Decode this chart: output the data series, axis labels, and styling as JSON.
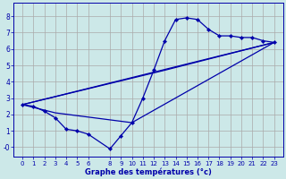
{
  "title": "Graphe des températures (°c)",
  "bg_color": "#cce8e8",
  "grid_color": "#aaaaaa",
  "line_color": "#0000aa",
  "x_ticks": [
    0,
    1,
    2,
    3,
    4,
    5,
    6,
    8,
    9,
    10,
    11,
    12,
    13,
    14,
    15,
    16,
    17,
    18,
    19,
    20,
    21,
    22,
    23
  ],
  "y_ticks": [
    0,
    1,
    2,
    3,
    4,
    5,
    6,
    7,
    8
  ],
  "ylim": [
    -0.6,
    8.8
  ],
  "xlim": [
    -0.8,
    23.8
  ],
  "line1_x": [
    0,
    1,
    2,
    3,
    4,
    5,
    6,
    8,
    9,
    10,
    11,
    12,
    13,
    14,
    15,
    16,
    17,
    18,
    19,
    20,
    21,
    22,
    23
  ],
  "line1_y": [
    2.6,
    2.5,
    2.2,
    1.8,
    1.1,
    1.0,
    0.8,
    -0.1,
    0.7,
    1.5,
    3.0,
    4.7,
    6.5,
    7.8,
    7.9,
    7.8,
    7.2,
    6.8,
    6.8,
    6.7,
    6.7,
    6.5,
    6.4
  ],
  "line2_x": [
    0,
    23
  ],
  "line2_y": [
    2.6,
    6.4
  ],
  "line3_x": [
    0,
    3,
    10,
    23
  ],
  "line3_y": [
    2.6,
    2.1,
    1.5,
    6.4
  ],
  "line4_x": [
    0,
    13,
    23
  ],
  "line4_y": [
    2.6,
    4.7,
    6.4
  ]
}
